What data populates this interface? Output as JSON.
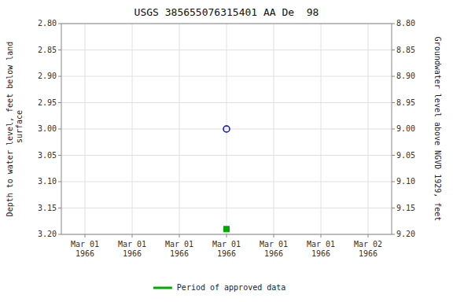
{
  "chart_data": {
    "type": "scatter",
    "title": "USGS 385655076315401 AA De  98",
    "y_label": "Depth to water level, feet below land\n surface",
    "y2_label": "Groundwater level above NGVD 1929, feet",
    "categories": [
      "Mar 01\n1966",
      "Mar 01\n1966",
      "Mar 01\n1966",
      "Mar 01\n1966",
      "Mar 01\n1966",
      "Mar 01\n1966",
      "Mar 02\n1966"
    ],
    "series": [
      {
        "color": "blue",
        "marker": "circle",
        "values": [
          null,
          null,
          null,
          3,
          null,
          null,
          null
        ]
      },
      {
        "name": "Period of approved data",
        "color": "#00aa00",
        "marker": "square",
        "values": [
          null,
          null,
          null,
          3.19,
          null,
          null,
          null
        ]
      }
    ],
    "ylim": [
      3.2,
      2.8
    ],
    "yticks": [
      {
        "value": 2.8,
        "label": "2.80"
      },
      2.85,
      {
        "value": 2.9,
        "label": "2.90"
      },
      2.95,
      {
        "value": 3,
        "label": "3.00"
      },
      3.05,
      {
        "value": 3.1,
        "label": "3.10"
      },
      3.15,
      {
        "value": 3.2,
        "label": "3.20"
      }
    ],
    "y2lim": [
      9.2,
      8.8
    ],
    "y2ticks": [
      {
        "value": 9.2,
        "label": "9.20"
      },
      9.15,
      {
        "value": 9.1,
        "label": "9.10"
      },
      9.05,
      {
        "value": 9,
        "label": "9.00"
      },
      8.95,
      {
        "value": 8.9,
        "label": "8.90"
      },
      8.85,
      {
        "value": 8.8,
        "label": "8.80"
      }
    ],
    "grid": true,
    "legend": "bottom"
  }
}
